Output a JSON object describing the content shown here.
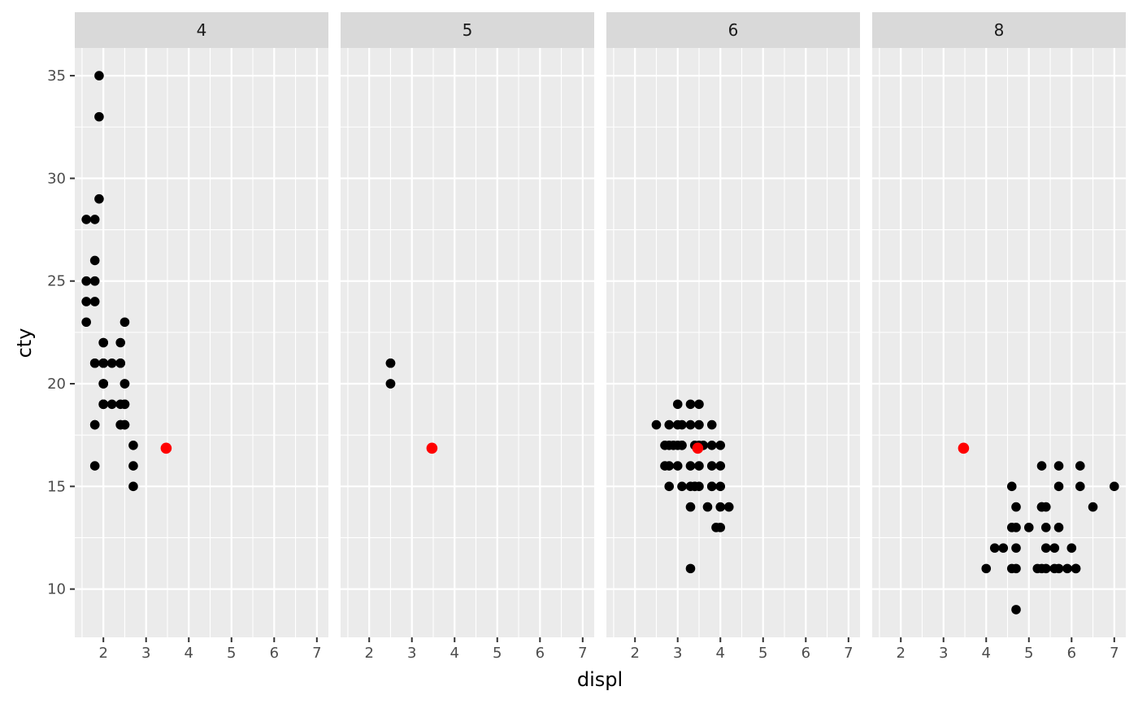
{
  "chart_data": {
    "type": "scatter",
    "facet_by": "cyl",
    "facets": [
      {
        "label": "4",
        "points": [
          [
            1.8,
            18
          ],
          [
            1.8,
            21
          ],
          [
            2.0,
            20
          ],
          [
            2.0,
            21
          ],
          [
            1.8,
            16
          ],
          [
            1.8,
            18
          ],
          [
            2.0,
            20
          ],
          [
            2.0,
            19
          ],
          [
            2.5,
            18
          ],
          [
            2.5,
            20
          ],
          [
            2.4,
            21
          ],
          [
            2.4,
            22
          ],
          [
            2.4,
            18
          ],
          [
            2.5,
            19
          ],
          [
            2.5,
            20
          ],
          [
            2.5,
            18
          ],
          [
            1.8,
            21
          ],
          [
            1.8,
            24
          ],
          [
            1.8,
            26
          ],
          [
            1.8,
            25
          ],
          [
            2.0,
            21
          ],
          [
            2.0,
            22
          ],
          [
            2.0,
            19
          ],
          [
            2.0,
            20
          ],
          [
            1.6,
            28
          ],
          [
            1.6,
            24
          ],
          [
            1.6,
            25
          ],
          [
            1.6,
            23
          ],
          [
            1.8,
            28
          ],
          [
            1.9,
            29
          ],
          [
            1.9,
            33
          ],
          [
            1.9,
            35
          ],
          [
            2.5,
            23
          ],
          [
            2.5,
            19
          ],
          [
            2.7,
            17
          ],
          [
            2.7,
            16
          ],
          [
            2.7,
            15
          ],
          [
            2.2,
            21
          ],
          [
            2.2,
            19
          ],
          [
            2.4,
            19
          ],
          [
            2.4,
            21
          ],
          [
            2.4,
            18
          ],
          [
            2.0,
            19
          ],
          [
            2.0,
            21
          ],
          [
            2.0,
            22
          ]
        ]
      },
      {
        "label": "5",
        "points": [
          [
            2.5,
            21
          ],
          [
            2.5,
            20
          ],
          [
            2.5,
            20
          ],
          [
            2.5,
            21
          ]
        ]
      },
      {
        "label": "6",
        "points": [
          [
            2.8,
            16
          ],
          [
            2.8,
            18
          ],
          [
            3.1,
            18
          ],
          [
            3.1,
            17
          ],
          [
            3.1,
            15
          ],
          [
            3.3,
            16
          ],
          [
            3.3,
            15
          ],
          [
            3.8,
            15
          ],
          [
            3.8,
            17
          ],
          [
            3.8,
            15
          ],
          [
            3.8,
            16
          ],
          [
            4.0,
            15
          ],
          [
            3.3,
            14
          ],
          [
            3.0,
            18
          ],
          [
            3.0,
            17
          ],
          [
            3.5,
            18
          ],
          [
            3.5,
            19
          ],
          [
            3.5,
            17
          ],
          [
            3.6,
            17
          ],
          [
            2.8,
            17
          ],
          [
            2.7,
            16
          ],
          [
            2.7,
            17
          ],
          [
            2.5,
            18
          ],
          [
            2.9,
            17
          ],
          [
            3.3,
            11
          ],
          [
            3.4,
            15
          ],
          [
            3.7,
            14
          ],
          [
            4.0,
            14
          ],
          [
            4.0,
            13
          ],
          [
            3.9,
            13
          ],
          [
            4.2,
            14
          ],
          [
            3.0,
            19
          ],
          [
            3.3,
            19
          ],
          [
            3.3,
            18
          ],
          [
            3.5,
            15
          ],
          [
            3.5,
            16
          ],
          [
            3.8,
            18
          ],
          [
            4.0,
            16
          ],
          [
            4.0,
            17
          ],
          [
            2.8,
            15
          ],
          [
            3.1,
            17
          ],
          [
            3.4,
            17
          ],
          [
            3.0,
            16
          ],
          [
            3.4,
            15
          ]
        ]
      },
      {
        "label": "8",
        "points": [
          [
            5.7,
            15
          ],
          [
            6.2,
            16
          ],
          [
            6.2,
            15
          ],
          [
            7.0,
            15
          ],
          [
            5.3,
            14
          ],
          [
            6.0,
            12
          ],
          [
            6.5,
            14
          ],
          [
            5.7,
            13
          ],
          [
            5.3,
            11
          ],
          [
            5.4,
            11
          ],
          [
            5.3,
            14
          ],
          [
            4.7,
            9
          ],
          [
            4.7,
            11
          ],
          [
            5.2,
            11
          ],
          [
            5.7,
            11
          ],
          [
            5.9,
            11
          ],
          [
            4.6,
            13
          ],
          [
            5.4,
            13
          ],
          [
            4.0,
            11
          ],
          [
            4.7,
            14
          ],
          [
            4.7,
            13
          ],
          [
            4.7,
            12
          ],
          [
            4.6,
            11
          ],
          [
            5.0,
            13
          ],
          [
            5.4,
            12
          ],
          [
            4.6,
            15
          ],
          [
            5.4,
            14
          ],
          [
            4.2,
            12
          ],
          [
            4.4,
            12
          ],
          [
            5.6,
            12
          ],
          [
            6.1,
            11
          ],
          [
            5.7,
            16
          ],
          [
            6.1,
            11
          ],
          [
            5.3,
            16
          ],
          [
            5.6,
            11
          ]
        ]
      }
    ],
    "highlight": {
      "x": 3.47,
      "y": 16.86,
      "color": "#ff0000"
    },
    "xlabel": "displ",
    "ylabel": "cty",
    "x_ticks": [
      2,
      3,
      4,
      5,
      6,
      7
    ],
    "y_ticks": [
      10,
      15,
      20,
      25,
      30,
      35
    ],
    "xlim": [
      1.33,
      7.27
    ],
    "ylim": [
      7.65,
      36.35
    ],
    "colors": {
      "panel_bg": "#ebebeb",
      "strip_bg": "#d9d9d9",
      "grid": "#ffffff",
      "point": "#000000"
    },
    "grid": true,
    "legend": "none"
  }
}
